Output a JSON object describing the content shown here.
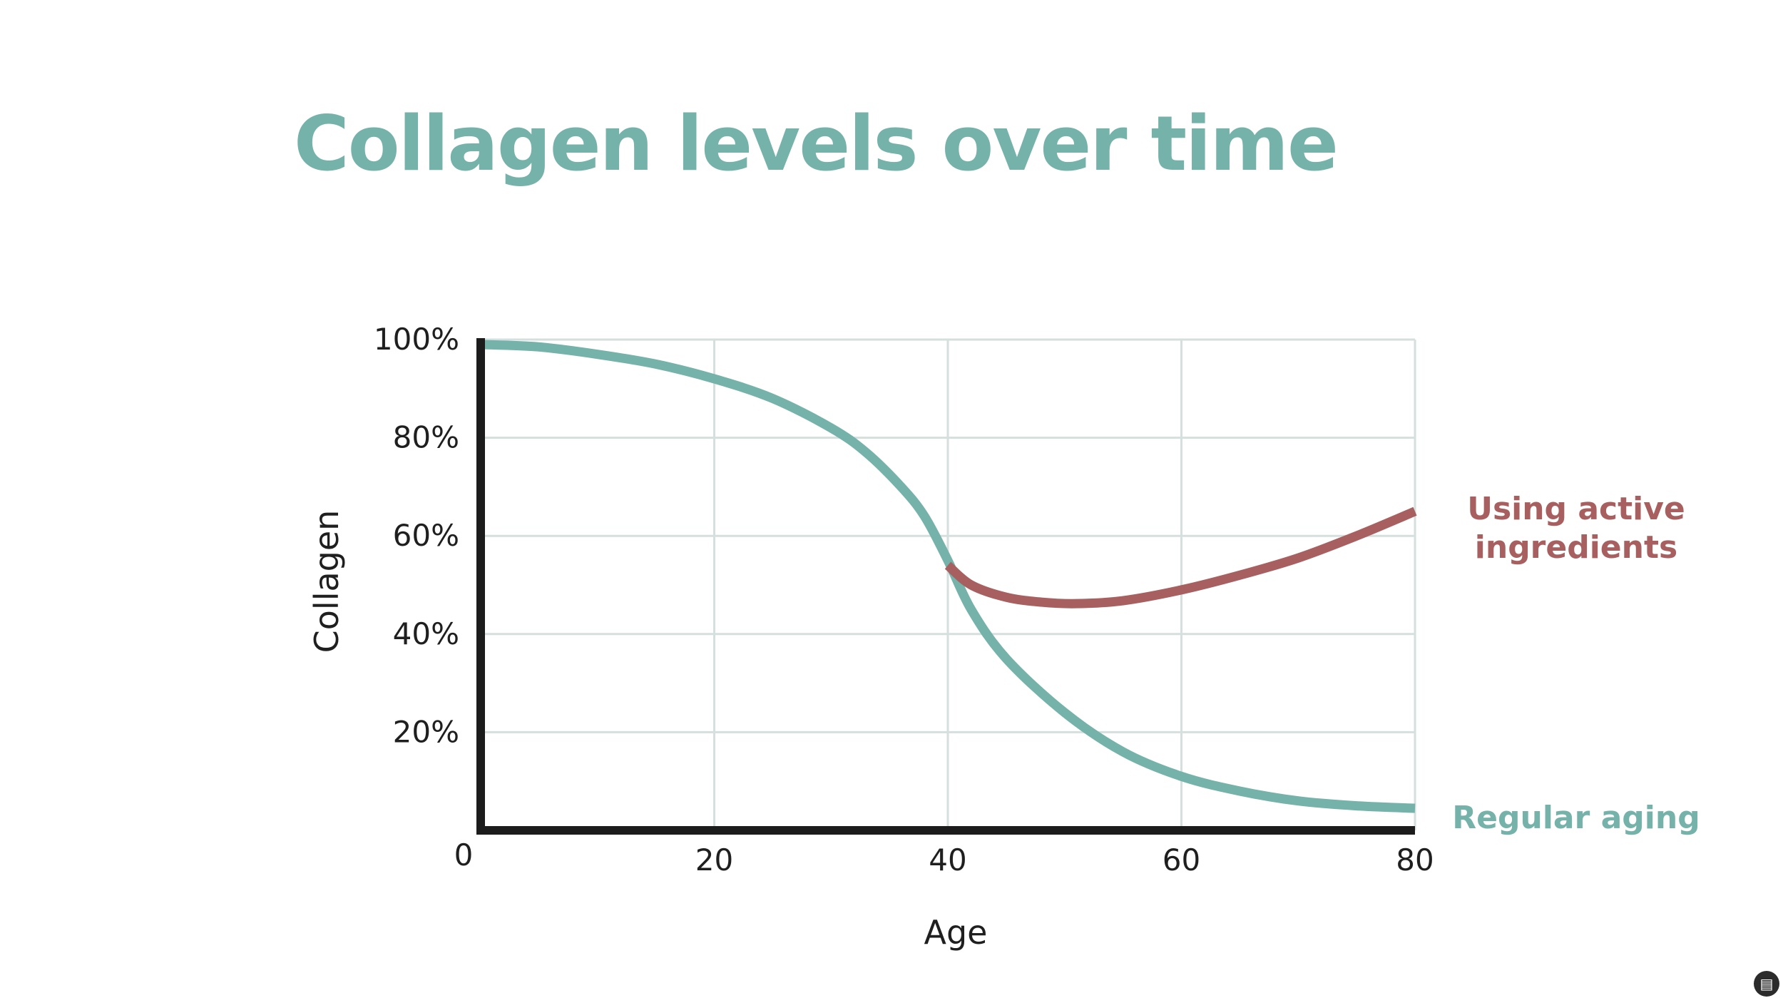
{
  "title": "Collagen levels over time",
  "colors": {
    "regular_aging": "#74b2aa",
    "active_ingredients": "#a85f5f",
    "axis": "#1c1c1c",
    "grid": "#d5dfdd"
  },
  "chart_data": {
    "type": "line",
    "title": "Collagen levels over time",
    "xlabel": "Age",
    "ylabel": "Collagen",
    "xlim": [
      0,
      80
    ],
    "ylim": [
      0,
      100
    ],
    "grid": true,
    "legend": "right (labels at line ends)",
    "x_ticks": [
      {
        "value": 0,
        "label": "0"
      },
      {
        "value": 20,
        "label": "20"
      },
      {
        "value": 40,
        "label": "40"
      },
      {
        "value": 60,
        "label": "60"
      },
      {
        "value": 80,
        "label": "80"
      }
    ],
    "y_ticks": [
      {
        "value": 20,
        "label": "20%"
      },
      {
        "value": 40,
        "label": "40%"
      },
      {
        "value": 60,
        "label": "60%"
      },
      {
        "value": 80,
        "label": "80%"
      },
      {
        "value": 100,
        "label": "100%"
      }
    ],
    "series": [
      {
        "name": "Regular aging",
        "color": "#74b2aa",
        "x": [
          0,
          5,
          10,
          15,
          20,
          25,
          30,
          33,
          36,
          38,
          40,
          42,
          45,
          50,
          55,
          60,
          65,
          70,
          75,
          80
        ],
        "y": [
          99,
          98.5,
          97,
          95,
          92,
          88,
          82,
          77,
          70,
          64,
          55,
          45,
          35,
          24,
          16,
          11,
          8,
          6,
          5,
          4.5
        ]
      },
      {
        "name": "Using active ingredients",
        "color": "#a85f5f",
        "x": [
          40,
          42,
          45,
          48,
          51,
          55,
          60,
          65,
          70,
          75,
          80
        ],
        "y": [
          54,
          50,
          47.5,
          46.5,
          46.2,
          46.8,
          49,
          52,
          55.5,
          60,
          65
        ]
      }
    ]
  },
  "series_labels": {
    "active_line1": "Using active",
    "active_line2": "ingredients",
    "regular": "Regular aging"
  }
}
